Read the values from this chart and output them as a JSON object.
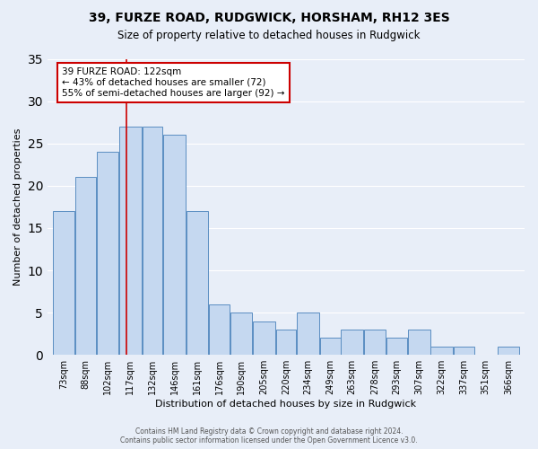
{
  "title": "39, FURZE ROAD, RUDGWICK, HORSHAM, RH12 3ES",
  "subtitle": "Size of property relative to detached houses in Rudgwick",
  "xlabel": "Distribution of detached houses by size in Rudgwick",
  "ylabel": "Number of detached properties",
  "bar_labels": [
    "73sqm",
    "88sqm",
    "102sqm",
    "117sqm",
    "132sqm",
    "146sqm",
    "161sqm",
    "176sqm",
    "190sqm",
    "205sqm",
    "220sqm",
    "234sqm",
    "249sqm",
    "263sqm",
    "278sqm",
    "293sqm",
    "307sqm",
    "322sqm",
    "337sqm",
    "351sqm",
    "366sqm"
  ],
  "bar_values": [
    17,
    21,
    24,
    27,
    27,
    26,
    17,
    6,
    5,
    4,
    3,
    5,
    2,
    3,
    3,
    2,
    3,
    1,
    1,
    0,
    1
  ],
  "bar_color": "#c5d8f0",
  "bar_edge_color": "#5b8ec2",
  "background_color": "#e8eef8",
  "grid_color": "#ffffff",
  "annotation_text": "39 FURZE ROAD: 122sqm\n← 43% of detached houses are smaller (72)\n55% of semi-detached houses are larger (92) →",
  "annotation_box_color": "#ffffff",
  "annotation_box_edge": "#cc0000",
  "vline_x": 122,
  "vline_color": "#cc0000",
  "ylim": [
    0,
    35
  ],
  "yticks": [
    0,
    5,
    10,
    15,
    20,
    25,
    30,
    35
  ],
  "footer_line1": "Contains HM Land Registry data © Crown copyright and database right 2024.",
  "footer_line2": "Contains public sector information licensed under the Open Government Licence v3.0.",
  "bin_edges": [
    73,
    88,
    102,
    117,
    132,
    146,
    161,
    176,
    190,
    205,
    220,
    234,
    249,
    263,
    278,
    293,
    307,
    322,
    337,
    351,
    366,
    381
  ]
}
